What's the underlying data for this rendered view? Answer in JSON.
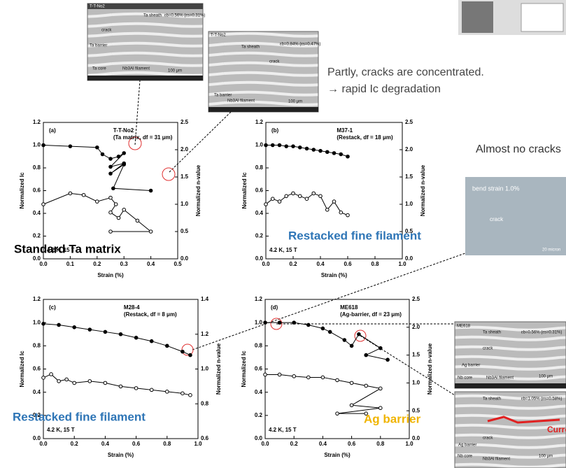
{
  "chart_data": [
    {
      "type": "line",
      "panel": "(a)",
      "sample": "T-T-No2",
      "detail": "(Ta matrix, df = 31 μm)",
      "condition": "4.2 K, 15 T",
      "label": "Standard Ta matrix",
      "label_color": "#000000",
      "xlabel": "Strain (%)",
      "ylabel": "Normalized Ic",
      "y2label": "Normalized n-value",
      "xlim": [
        0,
        0.5
      ],
      "xticks": [
        {
          "value": 0,
          "label": "0.0"
        },
        0.1,
        0.2,
        0.3,
        0.4,
        0.5
      ],
      "ylim": [
        0,
        1.2
      ],
      "yticks": [
        {
          "value": 0,
          "label": "0.0"
        },
        0.2,
        0.4,
        0.6,
        0.8,
        {
          "value": 1,
          "label": "1.0"
        },
        1.2
      ],
      "y2lim": [
        0,
        2.5
      ],
      "y2ticks": [
        {
          "value": 0,
          "label": "0.0"
        },
        0.5,
        {
          "value": 1,
          "label": "1.0"
        },
        1.5,
        {
          "value": 2,
          "label": "2.0"
        },
        2.5
      ],
      "series": [
        {
          "color": "#000000",
          "marker": "filled",
          "x": [
            0,
            0.1,
            0.2,
            0.22,
            0.25,
            0.28,
            0.3,
            0.25,
            0.3,
            0.25,
            0.3,
            0.26,
            0.4
          ],
          "values": [
            1.0,
            0.99,
            0.98,
            0.92,
            0.88,
            0.9,
            0.93,
            0.81,
            0.84,
            0.75,
            0.83,
            0.62,
            0.6
          ]
        },
        {
          "color": "#000000",
          "marker": "open",
          "axis": "y2",
          "x": [
            0,
            0.1,
            0.15,
            0.2,
            0.25,
            0.27,
            0.25,
            0.28,
            0.3,
            0.35,
            0.4,
            0.25
          ],
          "values": [
            1.0,
            1.2,
            1.17,
            1.05,
            1.12,
            1.0,
            0.85,
            0.75,
            0.9,
            0.7,
            0.5,
            0.5
          ]
        }
      ]
    },
    {
      "type": "line",
      "panel": "(b)",
      "sample": "M37-1",
      "detail": "(Restack, df = 18 μm)",
      "condition": "4.2 K, 15 T",
      "label": "Restacked fine filament",
      "label_color": "#2e75b6",
      "xlabel": "Strain (%)",
      "ylabel": "Normalized Ic",
      "y2label": "Normalized n-value",
      "xlim": [
        0,
        1
      ],
      "xticks": [
        {
          "value": 0,
          "label": "0.0"
        },
        0.2,
        0.4,
        0.6,
        0.8,
        {
          "value": 1,
          "label": "1.0"
        }
      ],
      "ylim": [
        0,
        1.2
      ],
      "yticks": [
        {
          "value": 0,
          "label": "0.0"
        },
        0.2,
        0.4,
        0.6,
        0.8,
        {
          "value": 1,
          "label": "1.0"
        },
        1.2
      ],
      "y2lim": [
        0,
        2.5
      ],
      "y2ticks": [
        {
          "value": 0,
          "label": "0.0"
        },
        0.5,
        {
          "value": 1,
          "label": "1.0"
        },
        1.5,
        {
          "value": 2,
          "label": "2.0"
        },
        2.5
      ],
      "series": [
        {
          "color": "#000000",
          "marker": "filled",
          "x": [
            0,
            0.05,
            0.1,
            0.15,
            0.2,
            0.25,
            0.3,
            0.35,
            0.4,
            0.45,
            0.5,
            0.55,
            0.6
          ],
          "values": [
            1.0,
            1.0,
            1.0,
            0.99,
            0.99,
            0.98,
            0.97,
            0.96,
            0.95,
            0.94,
            0.93,
            0.92,
            0.9
          ]
        },
        {
          "color": "#000000",
          "marker": "open",
          "axis": "y2",
          "x": [
            0,
            0.05,
            0.1,
            0.15,
            0.2,
            0.25,
            0.3,
            0.35,
            0.4,
            0.45,
            0.5,
            0.55,
            0.6
          ],
          "values": [
            1.0,
            1.1,
            1.05,
            1.15,
            1.2,
            1.15,
            1.1,
            1.2,
            1.15,
            0.9,
            1.05,
            0.85,
            0.8
          ]
        }
      ]
    },
    {
      "type": "line",
      "panel": "(c)",
      "sample": "M28-4",
      "detail": "(Restack, df = 8 μm)",
      "condition": "4.2 K, 15 T",
      "label": "Restacked fine filament",
      "label_color": "#2e75b6",
      "xlabel": "Strain (%)",
      "ylabel": "Normalized Ic",
      "y2label": "Normalized n-value",
      "xlim": [
        0,
        1
      ],
      "xticks": [
        {
          "value": 0,
          "label": "0.0"
        },
        0.2,
        0.4,
        0.6,
        0.8,
        {
          "value": 1,
          "label": "1.0"
        }
      ],
      "ylim": [
        0,
        1.2
      ],
      "yticks": [
        {
          "value": 0,
          "label": "0.0"
        },
        0.2,
        0.4,
        0.6,
        0.8,
        {
          "value": 1,
          "label": "1.0"
        },
        1.2
      ],
      "y2lim": [
        0.6,
        1.4
      ],
      "y2ticks": [
        0.6,
        0.8,
        {
          "value": 1,
          "label": "1.0"
        },
        1.2,
        1.4
      ],
      "series": [
        {
          "color": "#000000",
          "marker": "filled",
          "x": [
            0,
            0.1,
            0.2,
            0.3,
            0.4,
            0.5,
            0.6,
            0.7,
            0.8,
            0.9,
            0.95
          ],
          "values": [
            0.99,
            0.98,
            0.96,
            0.94,
            0.92,
            0.9,
            0.87,
            0.84,
            0.8,
            0.75,
            0.72
          ]
        },
        {
          "color": "#000000",
          "marker": "open",
          "axis": "y2",
          "x": [
            0,
            0.05,
            0.1,
            0.15,
            0.2,
            0.3,
            0.4,
            0.5,
            0.6,
            0.7,
            0.8,
            0.9,
            0.95
          ],
          "values": [
            0.95,
            0.97,
            0.93,
            0.94,
            0.92,
            0.93,
            0.92,
            0.9,
            0.89,
            0.88,
            0.87,
            0.86,
            0.85
          ]
        }
      ]
    },
    {
      "type": "line",
      "panel": "(d)",
      "sample": "ME618",
      "detail": "(Ag-barrier, df = 23 μm)",
      "condition": "4.2 K, 15 T",
      "label": "Ag barrier",
      "label_color": "#f0b400",
      "xlabel": "Strain (%)",
      "ylabel": "Normalized Ic",
      "y2label": "Normalized n-value",
      "xlim": [
        0,
        1
      ],
      "xticks": [
        {
          "value": 0,
          "label": "0.0"
        },
        0.2,
        0.4,
        0.6,
        0.8,
        {
          "value": 1,
          "label": "1.0"
        }
      ],
      "ylim": [
        0,
        1.2
      ],
      "yticks": [
        {
          "value": 0,
          "label": "0.0"
        },
        0.2,
        0.4,
        0.6,
        0.8,
        {
          "value": 1,
          "label": "1.0"
        },
        1.2
      ],
      "y2lim": [
        0,
        2.5
      ],
      "y2ticks": [
        {
          "value": 0,
          "label": "0.0"
        },
        0.5,
        {
          "value": 1,
          "label": "1.0"
        },
        1.5,
        {
          "value": 2,
          "label": "2.0"
        },
        2.5
      ],
      "series": [
        {
          "color": "#000000",
          "marker": "filled",
          "x": [
            0,
            0.1,
            0.2,
            0.3,
            0.4,
            0.45,
            0.55,
            0.6,
            0.65,
            0.8,
            0.7,
            0.85
          ],
          "values": [
            1.0,
            1.0,
            1.0,
            0.98,
            0.95,
            0.92,
            0.85,
            0.8,
            0.9,
            0.78,
            0.72,
            0.68
          ]
        },
        {
          "color": "#000000",
          "marker": "open",
          "axis": "y2",
          "x": [
            0,
            0.1,
            0.2,
            0.3,
            0.4,
            0.5,
            0.6,
            0.7,
            0.8,
            0.6,
            0.8,
            0.5,
            0.7
          ],
          "values": [
            1.15,
            1.15,
            1.12,
            1.1,
            1.1,
            1.05,
            1.0,
            0.95,
            0.9,
            0.6,
            0.55,
            0.45,
            0.45
          ]
        }
      ]
    }
  ],
  "notes": {
    "line1": "Partly, cracks are concentrated.",
    "line2": "→ rapid Ic degradation",
    "no_cracks": "Almost no cracks"
  },
  "images": {
    "a1": {
      "sample": "T-T-No2",
      "sheath": "Ta sheath",
      "crack": "crack",
      "barrier": "Ta barrier",
      "core": "Ta core",
      "filament": "Nb3Al filament",
      "scale": "100 μm",
      "strain": "εb=0.56% (εs=0.31%)"
    },
    "a2": {
      "sample": "T-T-No2",
      "sheath": "Ta sheath",
      "crack": "crack",
      "barrier": "Ta barrier",
      "filament": "Nb3Al filament",
      "scale": "100 μm",
      "strain": "εb=0.84% (εs=0.47%)"
    },
    "b": {
      "strain": "bend strain 1.0%",
      "crack": "crack",
      "scale": "20 micron"
    },
    "d1": {
      "sample": "ME618",
      "sheath": "Ta sheath",
      "crack": "crack",
      "barrier": "Ag barrier",
      "core": "Nb core",
      "filament": "Nb3Al filament",
      "scale": "100 μm",
      "strain": "εb=0.56% (εs=0.31%)"
    },
    "d2": {
      "sheath": "Ta sheath",
      "crack": "crack",
      "barrier": "Ag barrier",
      "core": "Nb core",
      "filament": "Nb3Al filament",
      "scale": "100 μm",
      "strain": "εb=1.05% (εs=0.58%)",
      "bypass": "Current bypass"
    }
  }
}
